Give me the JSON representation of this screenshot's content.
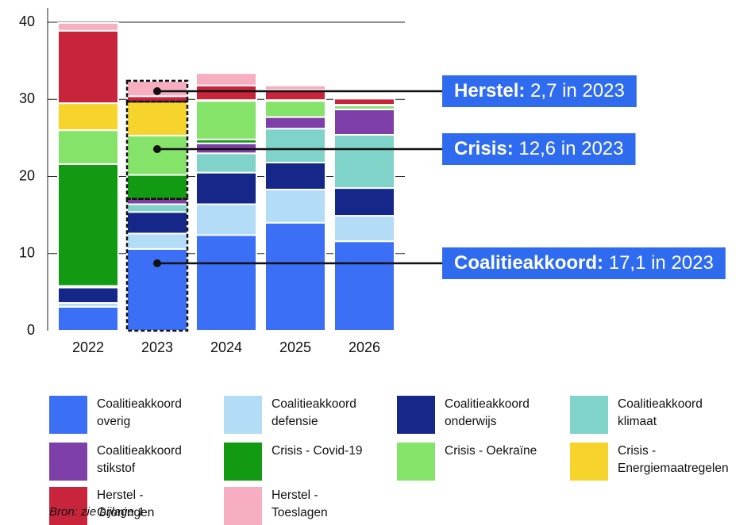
{
  "chart_data": {
    "type": "stacked-bar",
    "categories": [
      "2022",
      "2023",
      "2024",
      "2025",
      "2026"
    ],
    "ylim": [
      0,
      40
    ],
    "yticks": [
      0,
      10,
      20,
      30,
      40
    ],
    "grid": true,
    "series": [
      {
        "name": "Coalitieakkoord overig",
        "color": "#3b6ff5",
        "values": [
          3.1,
          10.6,
          12.4,
          14.0,
          11.6
        ]
      },
      {
        "name": "Coalitieakkoord defensie",
        "color": "#b3dcf7",
        "values": [
          0.5,
          2.0,
          4.0,
          4.3,
          3.3
        ]
      },
      {
        "name": "Coalitieakkoord onderwijs",
        "color": "#15288a",
        "values": [
          2.0,
          2.8,
          4.1,
          3.5,
          3.6
        ]
      },
      {
        "name": "Coalitieakkoord klimaat",
        "color": "#7fd3c8",
        "values": [
          0.2,
          1.0,
          2.5,
          4.4,
          6.9
        ]
      },
      {
        "name": "Coalitieakkoord stikstof",
        "color": "#7f3fa8",
        "values": [
          0,
          0.7,
          1.3,
          1.5,
          3.3
        ]
      },
      {
        "name": "Crisis - Covid-19",
        "color": "#119a12",
        "values": [
          15.8,
          3.1,
          0.5,
          0,
          0
        ]
      },
      {
        "name": "Crisis - Oekraïne",
        "color": "#86e36a",
        "values": [
          4.4,
          5.1,
          5.0,
          2.1,
          0.5
        ]
      },
      {
        "name": "Crisis - Energiemaatregelen",
        "color": "#f6d42b",
        "values": [
          3.5,
          4.4,
          0.1,
          0.1,
          0.1
        ]
      },
      {
        "name": "Herstel - Groningen",
        "color": "#c8243b",
        "values": [
          9.4,
          0.7,
          1.9,
          1.3,
          0.8
        ]
      },
      {
        "name": "Herstel - Toeslagen",
        "color": "#f6aec0",
        "values": [
          1.0,
          2.0,
          1.6,
          0.6,
          0.2
        ]
      }
    ],
    "annotations": [
      {
        "label": "Herstel:",
        "text": "2,7 in 2023"
      },
      {
        "label": "Crisis:",
        "text": "12,6 in 2023"
      },
      {
        "label": "Coalitieakkoord:",
        "text": "17,1 in 2023"
      }
    ],
    "source": "Bron: zie bijlage 1"
  }
}
